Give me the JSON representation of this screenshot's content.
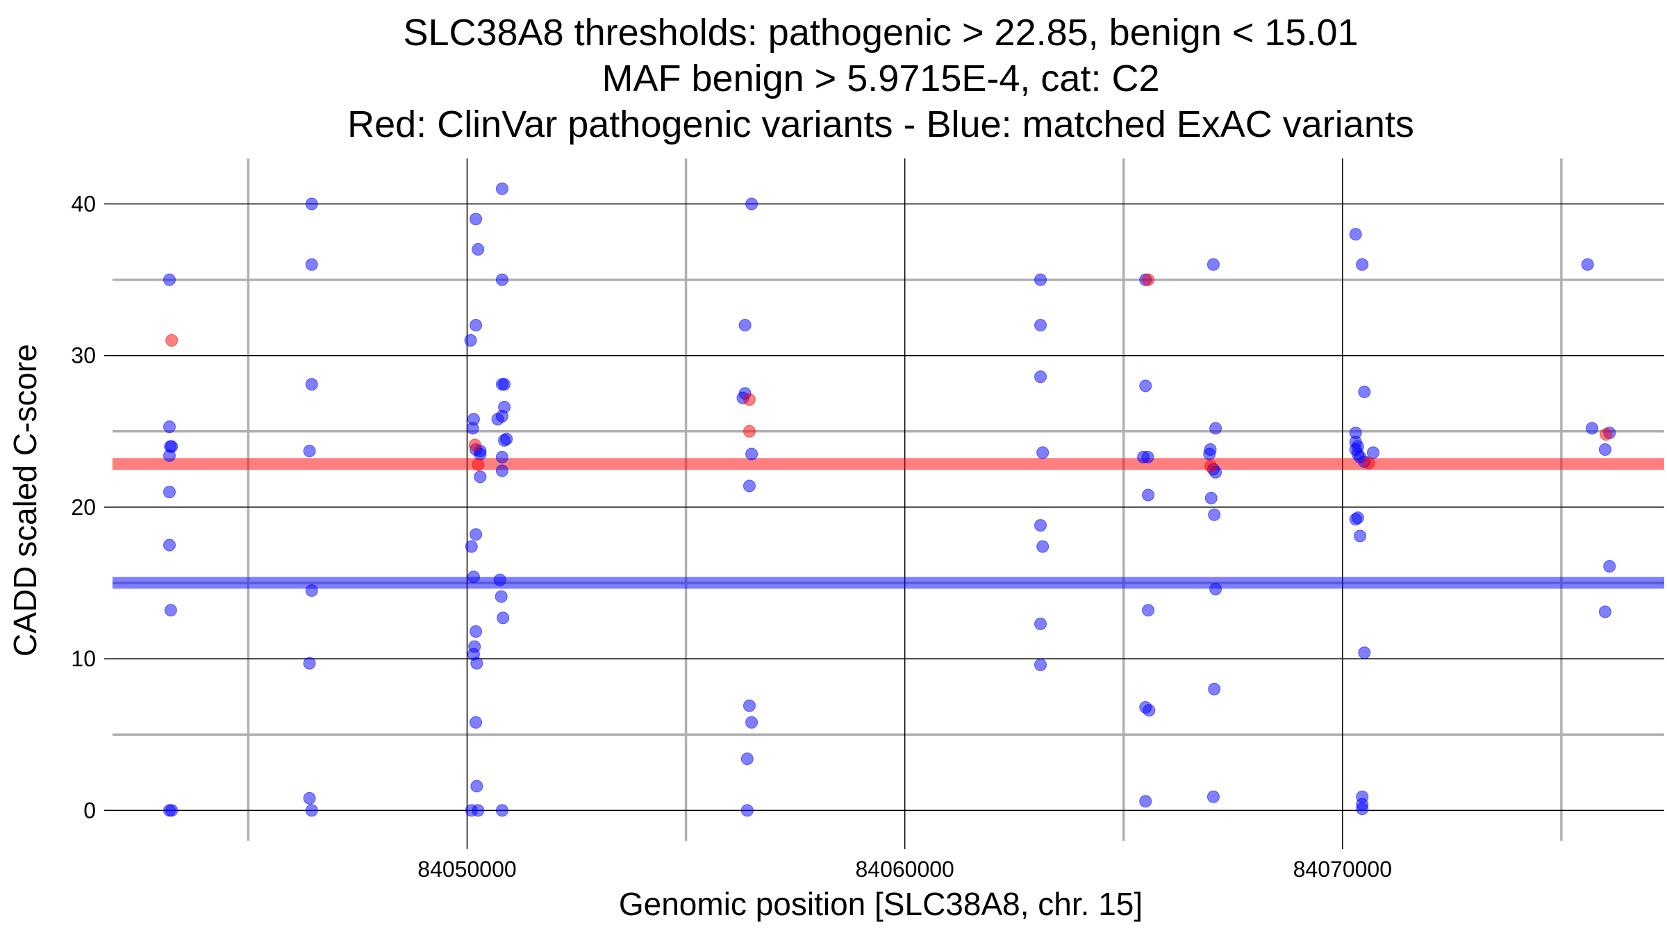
{
  "chart_data": {
    "type": "scatter",
    "title_lines": [
      "SLC38A8 thresholds: pathogenic > 22.85, benign < 15.01",
      "MAF benign > 5.9715E-4, cat: C2",
      "Red: ClinVar pathogenic variants - Blue: matched ExAC variants"
    ],
    "xlabel": "Genomic position [SLC38A8, chr. 15]",
    "ylabel": "CADD scaled C-score",
    "xlim": [
      84041550,
      84077350
    ],
    "ylim": [
      -2,
      43
    ],
    "x_ticks": [
      84050000,
      84060000,
      84070000
    ],
    "x_tick_labels": [
      "84050000",
      "84060000",
      "84070000"
    ],
    "x_minor_ticks": [
      84045000,
      84055000,
      84065000,
      84075000
    ],
    "y_ticks": [
      0,
      10,
      20,
      30,
      40
    ],
    "y_tick_labels": [
      "0",
      "10",
      "20",
      "30",
      "40"
    ],
    "y_minor_ticks": [
      5,
      15,
      25,
      35
    ],
    "grid": true,
    "thresholds": [
      {
        "name": "pathogenic",
        "value": 22.85,
        "color": "#ff0000"
      },
      {
        "name": "benign",
        "value": 15.01,
        "color": "#0000ff"
      }
    ],
    "colors": {
      "pathogenic": "#ff0000",
      "benign": "#0000ff"
    },
    "series": [
      {
        "name": "ClinVar pathogenic",
        "color": "#ff0000",
        "points": [
          [
            84043250,
            31.0
          ],
          [
            84050180,
            24.1
          ],
          [
            84050250,
            22.8
          ],
          [
            84056450,
            27.1
          ],
          [
            84056450,
            25.0
          ],
          [
            84065560,
            35.0
          ],
          [
            84066990,
            22.7
          ],
          [
            84070600,
            22.9
          ],
          [
            84076020,
            24.8
          ]
        ]
      },
      {
        "name": "matched ExAC",
        "color": "#0000ff",
        "points": [
          [
            84043200,
            35.0
          ],
          [
            84043200,
            25.3
          ],
          [
            84043220,
            24.0
          ],
          [
            84043250,
            24.0
          ],
          [
            84043200,
            23.4
          ],
          [
            84043200,
            21.0
          ],
          [
            84043200,
            17.5
          ],
          [
            84043230,
            13.2
          ],
          [
            84043200,
            0.0
          ],
          [
            84043250,
            0.0
          ],
          [
            84046450,
            40.0
          ],
          [
            84046450,
            36.0
          ],
          [
            84046450,
            28.1
          ],
          [
            84046400,
            23.7
          ],
          [
            84046450,
            14.5
          ],
          [
            84046400,
            9.7
          ],
          [
            84046400,
            0.8
          ],
          [
            84046450,
            0.0
          ],
          [
            84050800,
            41.0
          ],
          [
            84050200,
            39.0
          ],
          [
            84050250,
            37.0
          ],
          [
            84050800,
            35.0
          ],
          [
            84050200,
            32.0
          ],
          [
            84050080,
            31.0
          ],
          [
            84050800,
            28.1
          ],
          [
            84050850,
            28.1
          ],
          [
            84050850,
            26.6
          ],
          [
            84050800,
            26.0
          ],
          [
            84050700,
            25.8
          ],
          [
            84050150,
            25.8
          ],
          [
            84050130,
            25.2
          ],
          [
            84050900,
            24.5
          ],
          [
            84050850,
            24.4
          ],
          [
            84050200,
            23.8
          ],
          [
            84050300,
            23.7
          ],
          [
            84050300,
            23.5
          ],
          [
            84050800,
            23.3
          ],
          [
            84050800,
            22.4
          ],
          [
            84050300,
            22.0
          ],
          [
            84050200,
            18.2
          ],
          [
            84050100,
            17.4
          ],
          [
            84050150,
            15.4
          ],
          [
            84050750,
            15.2
          ],
          [
            84050780,
            14.1
          ],
          [
            84050820,
            12.7
          ],
          [
            84050200,
            11.8
          ],
          [
            84050170,
            10.8
          ],
          [
            84050150,
            10.3
          ],
          [
            84050220,
            9.7
          ],
          [
            84050200,
            5.8
          ],
          [
            84050220,
            1.6
          ],
          [
            84050100,
            0.0
          ],
          [
            84050250,
            0.0
          ],
          [
            84050800,
            0.0
          ],
          [
            84056500,
            40.0
          ],
          [
            84056350,
            32.0
          ],
          [
            84056350,
            27.5
          ],
          [
            84056300,
            27.2
          ],
          [
            84056500,
            23.5
          ],
          [
            84056450,
            21.4
          ],
          [
            84056450,
            6.9
          ],
          [
            84056500,
            5.8
          ],
          [
            84056400,
            3.4
          ],
          [
            84056400,
            0.0
          ],
          [
            84063100,
            35.0
          ],
          [
            84063100,
            32.0
          ],
          [
            84063100,
            28.6
          ],
          [
            84063150,
            23.6
          ],
          [
            84063100,
            18.8
          ],
          [
            84063150,
            17.4
          ],
          [
            84063100,
            12.3
          ],
          [
            84063100,
            9.6
          ],
          [
            84065500,
            35.0
          ],
          [
            84065500,
            28.0
          ],
          [
            84065450,
            23.3
          ],
          [
            84065550,
            23.3
          ],
          [
            84065560,
            20.8
          ],
          [
            84065560,
            13.2
          ],
          [
            84065500,
            6.8
          ],
          [
            84065580,
            6.6
          ],
          [
            84065500,
            0.6
          ],
          [
            84067050,
            36.0
          ],
          [
            84067100,
            25.2
          ],
          [
            84066980,
            23.8
          ],
          [
            84066960,
            23.5
          ],
          [
            84067050,
            22.5
          ],
          [
            84067100,
            22.3
          ],
          [
            84067000,
            20.6
          ],
          [
            84067070,
            19.5
          ],
          [
            84067100,
            14.6
          ],
          [
            84067070,
            8.0
          ],
          [
            84067050,
            0.9
          ],
          [
            84070300,
            38.0
          ],
          [
            84070450,
            36.0
          ],
          [
            84070500,
            27.6
          ],
          [
            84070300,
            24.9
          ],
          [
            84070300,
            24.3
          ],
          [
            84070350,
            24.0
          ],
          [
            84070300,
            23.8
          ],
          [
            84070350,
            23.5
          ],
          [
            84070400,
            23.3
          ],
          [
            84070700,
            23.6
          ],
          [
            84070500,
            23.0
          ],
          [
            84070350,
            19.3
          ],
          [
            84070300,
            19.2
          ],
          [
            84070400,
            18.1
          ],
          [
            84070500,
            10.4
          ],
          [
            84070450,
            0.9
          ],
          [
            84070450,
            0.4
          ],
          [
            84070450,
            0.1
          ],
          [
            84075600,
            36.0
          ],
          [
            84075700,
            25.2
          ],
          [
            84076100,
            24.9
          ],
          [
            84076000,
            23.8
          ],
          [
            84076100,
            16.1
          ],
          [
            84076000,
            13.1
          ]
        ]
      }
    ]
  }
}
